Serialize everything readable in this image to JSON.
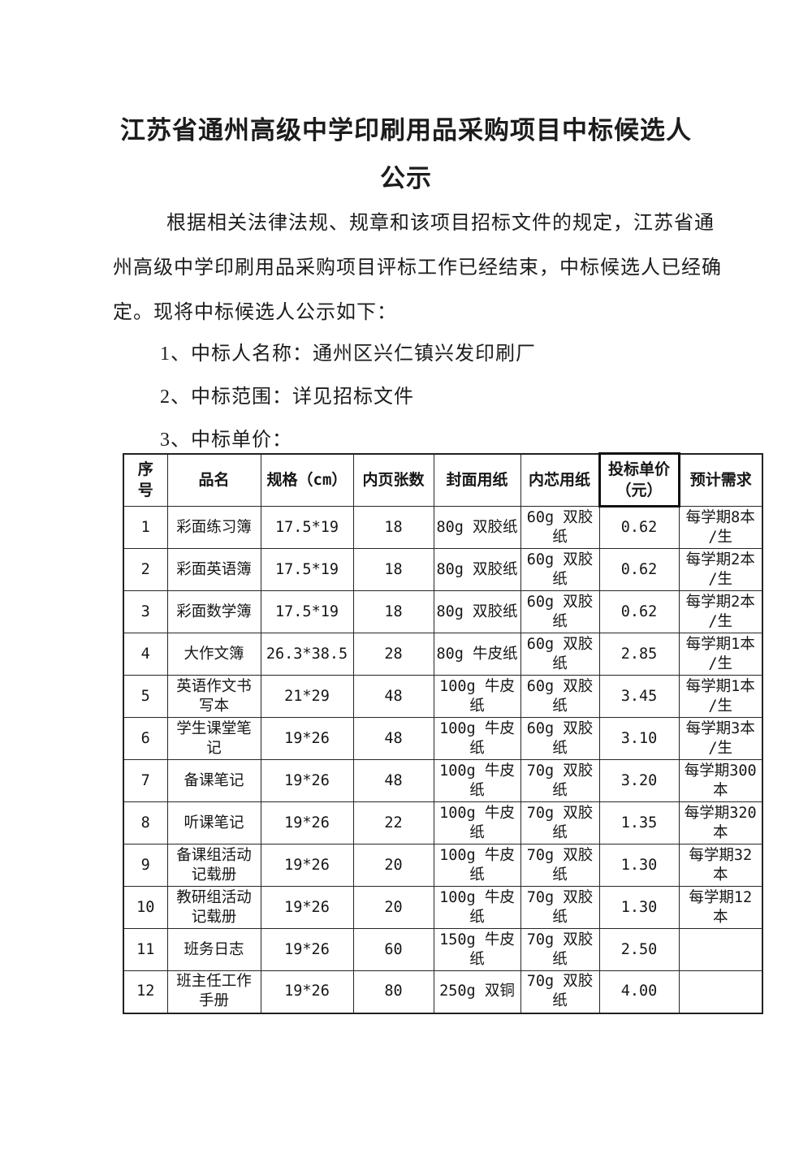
{
  "document": {
    "title_lines": [
      "江苏省通州高级中学印刷用品采购项目中标候选人",
      "公示"
    ],
    "paragraph_lines": [
      "根据相关法律法规、规章和该项目招标文件的规定，江苏省通",
      "州高级中学印刷用品采购项目评标工作已经结束，中标候选人已经确",
      "定。现将中标候选人公示如下："
    ],
    "list_items": [
      "1、中标人名称：通州区兴仁镇兴发印刷厂",
      "2、中标范围：详见招标文件",
      "3、中标单价："
    ]
  },
  "table": {
    "headers": [
      "序号",
      "品名",
      "规格（cm）",
      "内页张数",
      "封面用纸",
      "内芯用纸",
      "投标单价（元）",
      "预计需求"
    ],
    "rows": [
      [
        "1",
        "彩面练习簿",
        "17.5*19",
        "18",
        "80g 双胶纸",
        "60g 双胶纸",
        "0.62",
        "每学期8本/生"
      ],
      [
        "2",
        "彩面英语簿",
        "17.5*19",
        "18",
        "80g 双胶纸",
        "60g 双胶纸",
        "0.62",
        "每学期2本/生"
      ],
      [
        "3",
        "彩面数学簿",
        "17.5*19",
        "18",
        "80g 双胶纸",
        "60g 双胶纸",
        "0.62",
        "每学期2本/生"
      ],
      [
        "4",
        "大作文簿",
        "26.3*38.5",
        "28",
        "80g 牛皮纸",
        "60g 双胶纸",
        "2.85",
        "每学期1本/生"
      ],
      [
        "5",
        "英语作文书写本",
        "21*29",
        "48",
        "100g 牛皮纸",
        "60g 双胶纸",
        "3.45",
        "每学期1本/生"
      ],
      [
        "6",
        "学生课堂笔记",
        "19*26",
        "48",
        "100g 牛皮纸",
        "60g 双胶纸",
        "3.10",
        "每学期3本/生"
      ],
      [
        "7",
        "备课笔记",
        "19*26",
        "48",
        "100g 牛皮纸",
        "70g 双胶纸",
        "3.20",
        "每学期300本"
      ],
      [
        "8",
        "听课笔记",
        "19*26",
        "22",
        "100g 牛皮纸",
        "70g 双胶纸",
        "1.35",
        "每学期320本"
      ],
      [
        "9",
        "备课组活动记载册",
        "19*26",
        "20",
        "100g 牛皮纸",
        "70g 双胶纸",
        "1.30",
        "每学期32本"
      ],
      [
        "10",
        "教研组活动记载册",
        "19*26",
        "20",
        "100g 牛皮纸",
        "70g 双胶纸",
        "1.30",
        "每学期12本"
      ],
      [
        "11",
        "班务日志",
        "19*26",
        "60",
        "150g 牛皮纸",
        "70g 双胶纸",
        "2.50",
        ""
      ],
      [
        "12",
        "班主任工作手册",
        "19*26",
        "80",
        "250g 双铜",
        "70g 双胶纸",
        "4.00",
        ""
      ]
    ]
  },
  "colors": {
    "text": "#1c1c1c",
    "border": "#262626",
    "background": "#ffffff"
  }
}
